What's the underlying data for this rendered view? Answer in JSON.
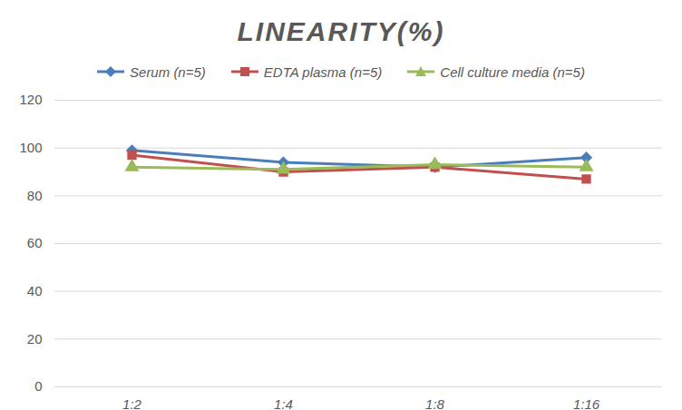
{
  "chart_data": {
    "type": "line",
    "title": "LINEARITY(%)",
    "categories": [
      "1:2",
      "1:4",
      "1:8",
      "1:16"
    ],
    "series": [
      {
        "name": "Serum (n=5)",
        "color": "#4a7ebb",
        "marker": "diamond",
        "values": [
          99,
          94,
          92,
          96
        ]
      },
      {
        "name": "EDTA plasma (n=5)",
        "color": "#c0504d",
        "marker": "square",
        "values": [
          97,
          90,
          92,
          87
        ]
      },
      {
        "name": "Cell culture media (n=5)",
        "color": "#9bbb59",
        "marker": "triangle",
        "values": [
          92,
          91,
          93,
          92
        ]
      }
    ],
    "ylim": [
      0,
      120
    ],
    "yticks": [
      0,
      20,
      40,
      60,
      80,
      100,
      120
    ],
    "grid": true,
    "legend": "top"
  }
}
